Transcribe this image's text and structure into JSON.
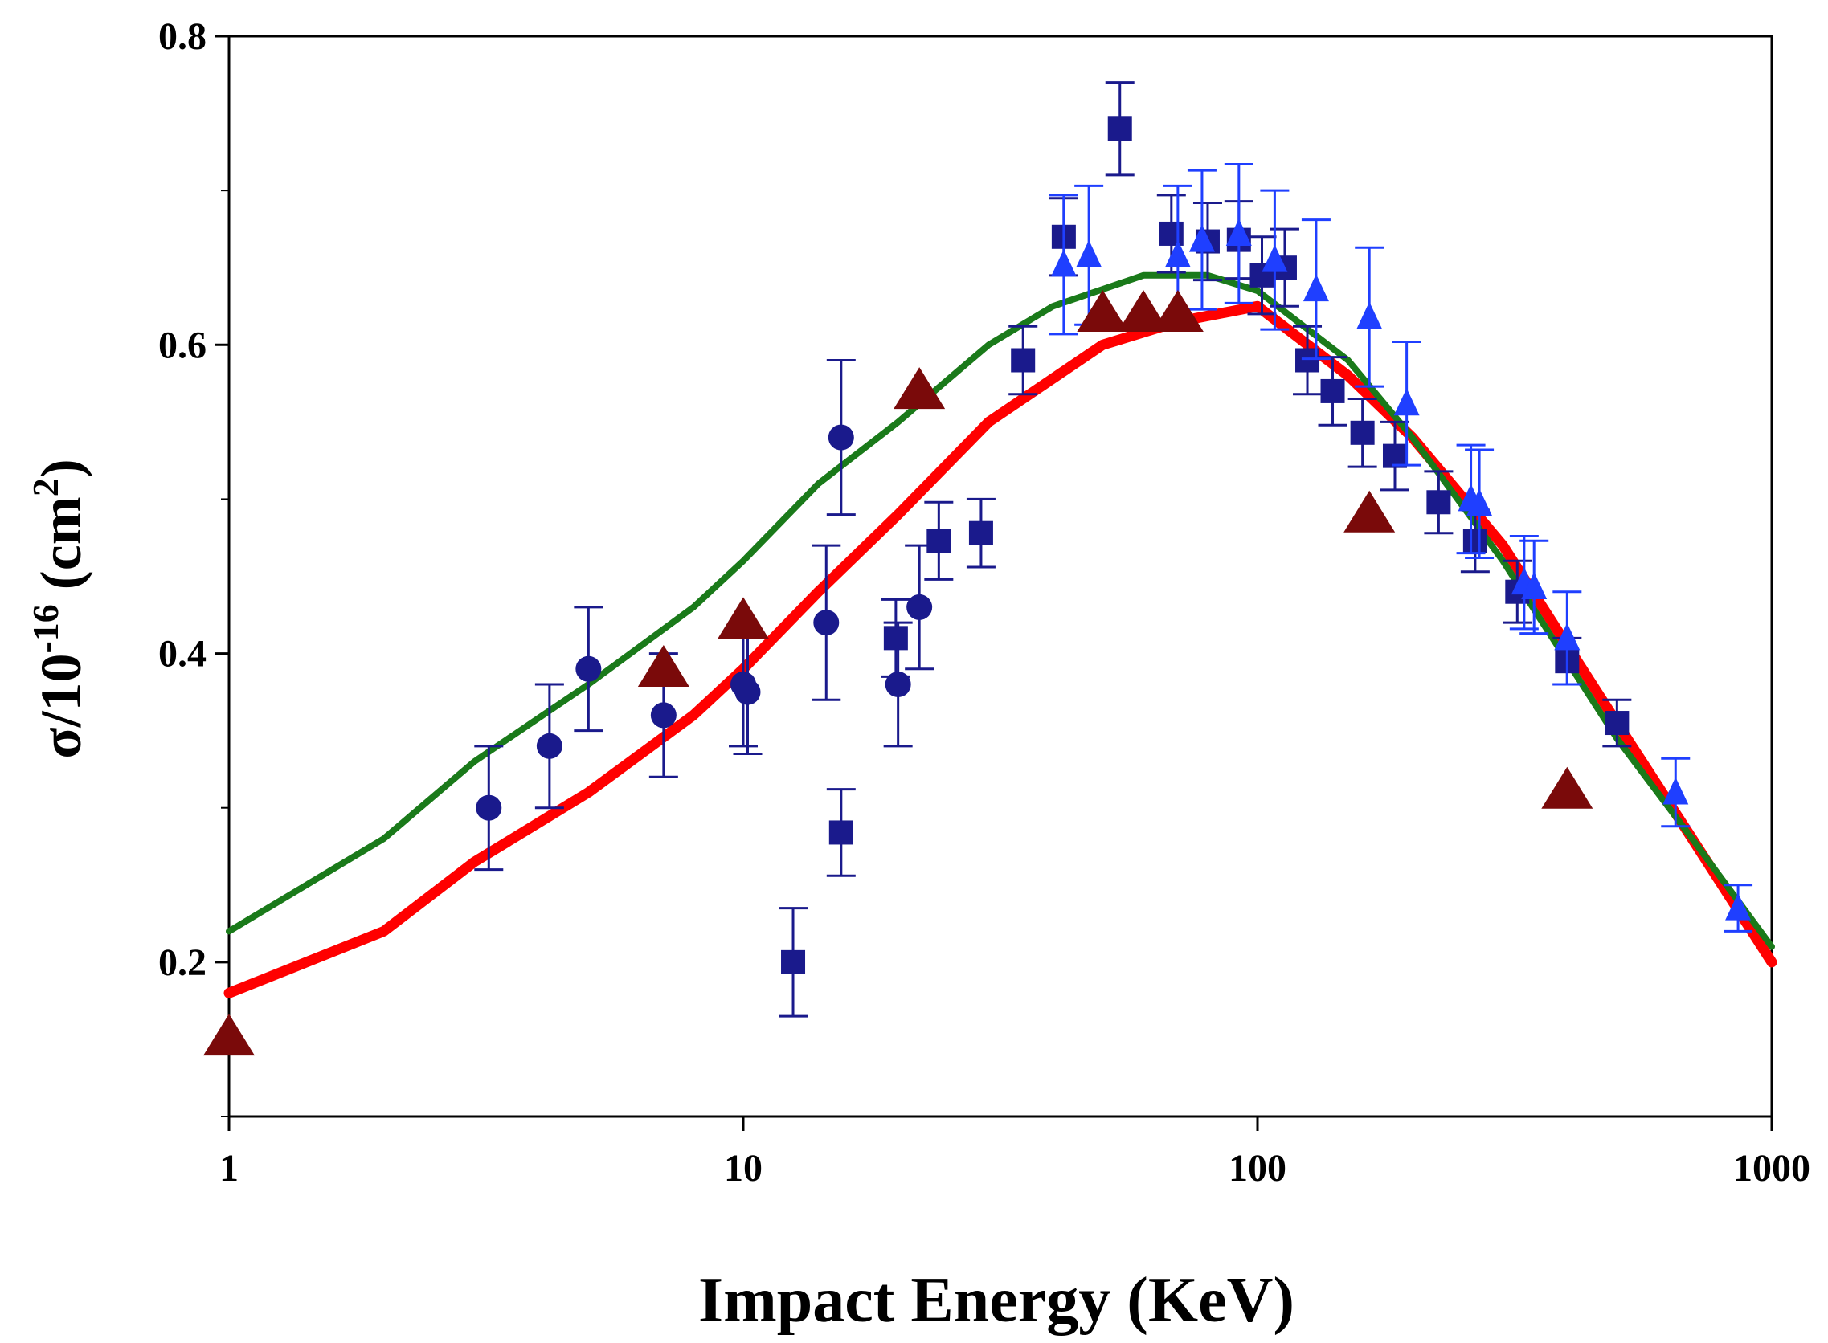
{
  "chart_data": {
    "type": "scatter",
    "title": "",
    "xlabel": "Impact Energy (KeV)",
    "ylabel_parts": {
      "base": "σ/10",
      "exp": "-16",
      "unit_open": " (cm",
      "unit_exp": "2",
      "unit_close": ")"
    },
    "xscale": "log",
    "xlim": [
      1,
      1000
    ],
    "ylim": [
      0.1,
      0.8
    ],
    "grid": false,
    "legend": "none",
    "xticks": [
      {
        "value": 1,
        "label": "1"
      },
      {
        "value": 10,
        "label": "10"
      },
      {
        "value": 100,
        "label": "100"
      },
      {
        "value": 1000,
        "label": "1000"
      }
    ],
    "yticks": [
      {
        "value": 0.2,
        "label": "0.2"
      },
      {
        "value": 0.4,
        "label": "0.4"
      },
      {
        "value": 0.6,
        "label": "0.6"
      },
      {
        "value": 0.8,
        "label": "0.8"
      }
    ],
    "lines": [
      {
        "name": "red-curve",
        "color": "#ff0000",
        "width": 13,
        "points": [
          [
            1,
            0.18
          ],
          [
            2,
            0.22
          ],
          [
            3,
            0.265
          ],
          [
            5,
            0.31
          ],
          [
            8,
            0.36
          ],
          [
            10,
            0.39
          ],
          [
            14,
            0.44
          ],
          [
            20,
            0.49
          ],
          [
            30,
            0.55
          ],
          [
            50,
            0.6
          ],
          [
            70,
            0.615
          ],
          [
            100,
            0.625
          ],
          [
            150,
            0.58
          ],
          [
            200,
            0.54
          ],
          [
            300,
            0.47
          ],
          [
            500,
            0.355
          ],
          [
            700,
            0.28
          ],
          [
            1000,
            0.2
          ]
        ]
      },
      {
        "name": "green-curve",
        "color": "#1a7a1a",
        "width": 8,
        "points": [
          [
            1,
            0.22
          ],
          [
            2,
            0.28
          ],
          [
            3,
            0.33
          ],
          [
            5,
            0.38
          ],
          [
            8,
            0.43
          ],
          [
            10,
            0.46
          ],
          [
            14,
            0.51
          ],
          [
            20,
            0.55
          ],
          [
            30,
            0.6
          ],
          [
            40,
            0.625
          ],
          [
            60,
            0.645
          ],
          [
            80,
            0.645
          ],
          [
            100,
            0.635
          ],
          [
            150,
            0.59
          ],
          [
            200,
            0.54
          ],
          [
            300,
            0.46
          ],
          [
            500,
            0.345
          ],
          [
            700,
            0.28
          ],
          [
            1000,
            0.21
          ]
        ]
      }
    ],
    "series": [
      {
        "name": "circles",
        "marker": "circle",
        "color": "#1a1a8c",
        "points": [
          {
            "x": 3.2,
            "y": 0.3,
            "err": 0.04
          },
          {
            "x": 4.2,
            "y": 0.34,
            "err": 0.04
          },
          {
            "x": 5.0,
            "y": 0.39,
            "err": 0.04
          },
          {
            "x": 7.0,
            "y": 0.36,
            "err": 0.04
          },
          {
            "x": 10.0,
            "y": 0.38,
            "err": 0.04
          },
          {
            "x": 10.2,
            "y": 0.375,
            "err": 0.04
          },
          {
            "x": 14.5,
            "y": 0.42,
            "err": 0.05
          },
          {
            "x": 15.5,
            "y": 0.54,
            "err": 0.05
          },
          {
            "x": 20.0,
            "y": 0.38,
            "err": 0.04
          },
          {
            "x": 22.0,
            "y": 0.43,
            "err": 0.04
          }
        ]
      },
      {
        "name": "squares",
        "marker": "square",
        "color": "#1a1a8c",
        "points": [
          {
            "x": 12.5,
            "y": 0.2,
            "err": 0.035
          },
          {
            "x": 15.5,
            "y": 0.284,
            "err": 0.028
          },
          {
            "x": 19.8,
            "y": 0.41,
            "err": 0.025
          },
          {
            "x": 24.0,
            "y": 0.473,
            "err": 0.025
          },
          {
            "x": 29.0,
            "y": 0.478,
            "err": 0.022
          },
          {
            "x": 35.0,
            "y": 0.59,
            "err": 0.022
          },
          {
            "x": 42.0,
            "y": 0.67,
            "err": 0.025
          },
          {
            "x": 54.0,
            "y": 0.74,
            "err": 0.03
          },
          {
            "x": 68.0,
            "y": 0.672,
            "err": 0.025
          },
          {
            "x": 80.0,
            "y": 0.667,
            "err": 0.025
          },
          {
            "x": 92.0,
            "y": 0.668,
            "err": 0.025
          },
          {
            "x": 102.0,
            "y": 0.645,
            "err": 0.025
          },
          {
            "x": 113.0,
            "y": 0.65,
            "err": 0.025
          },
          {
            "x": 125.0,
            "y": 0.59,
            "err": 0.022
          },
          {
            "x": 140.0,
            "y": 0.57,
            "err": 0.022
          },
          {
            "x": 160.0,
            "y": 0.543,
            "err": 0.022
          },
          {
            "x": 185.0,
            "y": 0.528,
            "err": 0.022
          },
          {
            "x": 225.0,
            "y": 0.498,
            "err": 0.02
          },
          {
            "x": 265.0,
            "y": 0.473,
            "err": 0.02
          },
          {
            "x": 320.0,
            "y": 0.44,
            "err": 0.02
          },
          {
            "x": 400.0,
            "y": 0.395,
            "err": 0.015
          },
          {
            "x": 500.0,
            "y": 0.355,
            "err": 0.015
          }
        ]
      },
      {
        "name": "blue-triangles",
        "marker": "triangle",
        "color": "#1f3fff",
        "points": [
          {
            "x": 42.0,
            "y": 0.652,
            "err": 0.045
          },
          {
            "x": 47.0,
            "y": 0.658,
            "err": 0.045
          },
          {
            "x": 70.0,
            "y": 0.658,
            "err": 0.045
          },
          {
            "x": 78.0,
            "y": 0.668,
            "err": 0.045
          },
          {
            "x": 92.0,
            "y": 0.672,
            "err": 0.045
          },
          {
            "x": 108.0,
            "y": 0.655,
            "err": 0.045
          },
          {
            "x": 130.0,
            "y": 0.636,
            "err": 0.045
          },
          {
            "x": 165.0,
            "y": 0.618,
            "err": 0.045
          },
          {
            "x": 195.0,
            "y": 0.562,
            "err": 0.04
          },
          {
            "x": 260.0,
            "y": 0.5,
            "err": 0.035
          },
          {
            "x": 270.0,
            "y": 0.497,
            "err": 0.035
          },
          {
            "x": 330.0,
            "y": 0.446,
            "err": 0.03
          },
          {
            "x": 345.0,
            "y": 0.443,
            "err": 0.03
          },
          {
            "x": 400.0,
            "y": 0.41,
            "err": 0.03
          },
          {
            "x": 650.0,
            "y": 0.31,
            "err": 0.022
          },
          {
            "x": 860.0,
            "y": 0.235,
            "err": 0.015
          }
        ]
      },
      {
        "name": "dark-red-triangles",
        "marker": "triangle-large",
        "color": "#7a0a0a",
        "points": [
          {
            "x": 1.0,
            "y": 0.153
          },
          {
            "x": 7.0,
            "y": 0.392
          },
          {
            "x": 10.0,
            "y": 0.423
          },
          {
            "x": 22.0,
            "y": 0.572
          },
          {
            "x": 50.0,
            "y": 0.622
          },
          {
            "x": 60.0,
            "y": 0.622
          },
          {
            "x": 70.0,
            "y": 0.622
          },
          {
            "x": 165.0,
            "y": 0.492
          },
          {
            "x": 400.0,
            "y": 0.313
          }
        ]
      }
    ]
  }
}
